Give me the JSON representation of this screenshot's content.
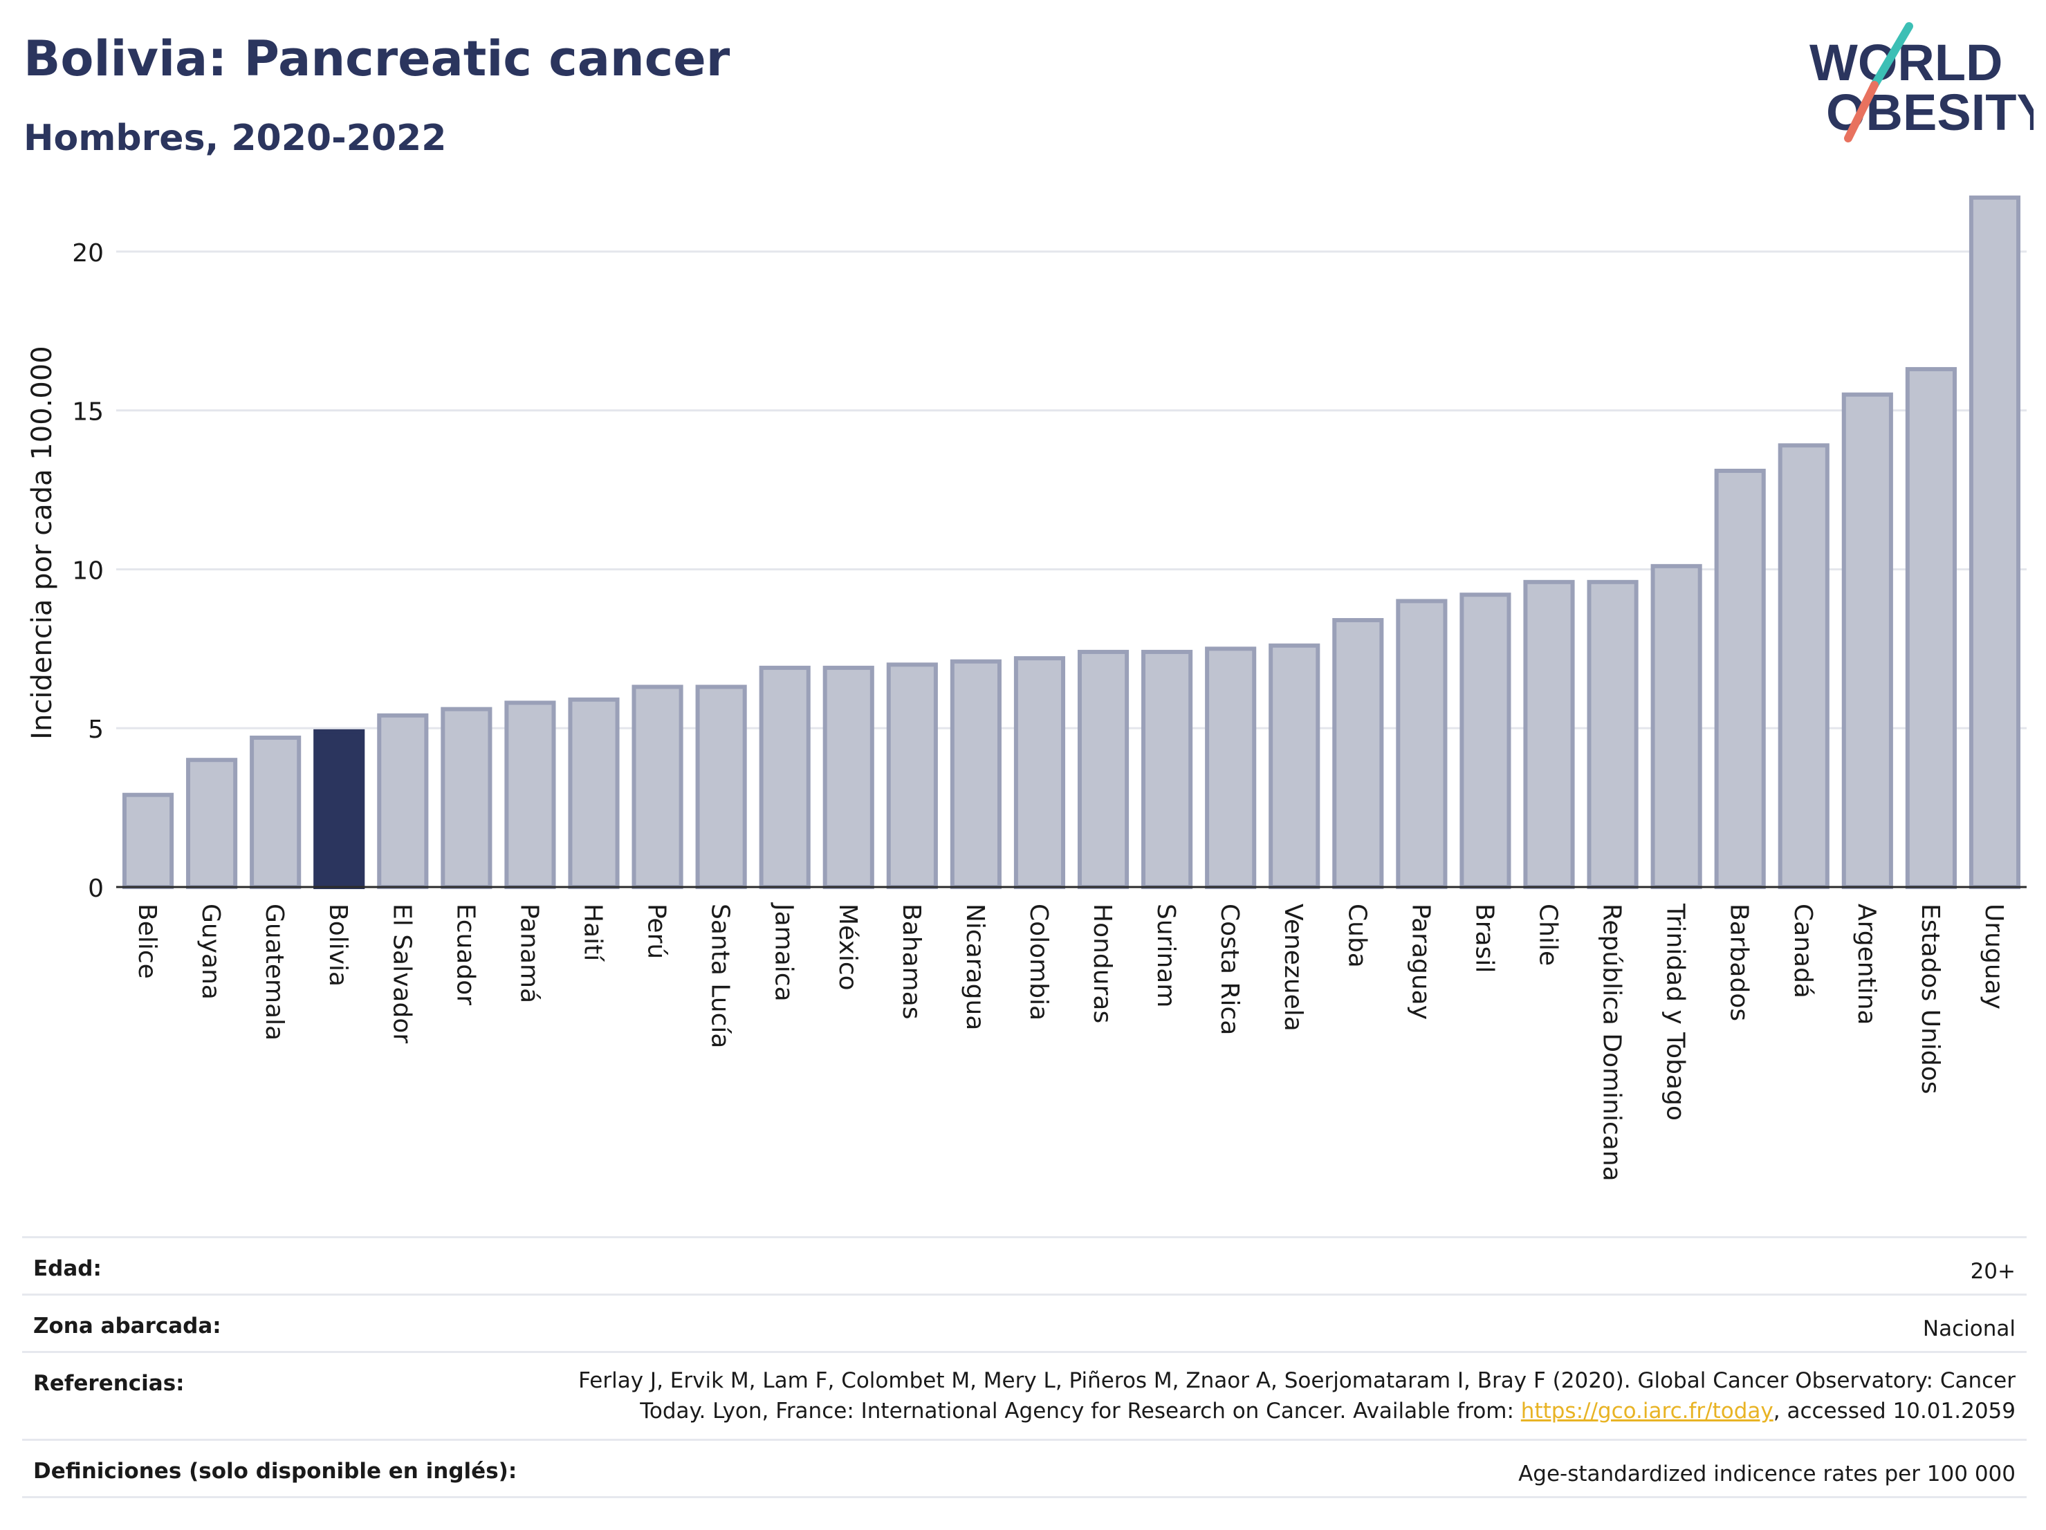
{
  "header": {
    "title": "Bolivia: Pancreatic cancer",
    "subtitle": "Hombres, 2020-2022",
    "logo_line1": "WORLD",
    "logo_line2": "OBESITY"
  },
  "colors": {
    "title": "#2b355e",
    "bar_fill": "#bfc3d0",
    "bar_stroke": "#9aa0b8",
    "highlight": "#2b355e",
    "logo_teal": "#3cbfb5",
    "logo_coral": "#e8725f",
    "link": "#e8b324"
  },
  "chart_data": {
    "type": "bar",
    "ylabel": "Incidencia por cada 100.000",
    "ylim": [
      0,
      22
    ],
    "yticks": [
      0,
      5,
      10,
      15,
      20
    ],
    "grid": true,
    "highlight": "Bolivia",
    "categories": [
      "Belice",
      "Guyana",
      "Guatemala",
      "Bolivia",
      "El Salvador",
      "Ecuador",
      "Panamá",
      "Haití",
      "Perú",
      "Santa Lucía",
      "Jamaica",
      "México",
      "Bahamas",
      "Nicaragua",
      "Colombia",
      "Honduras",
      "Surinam",
      "Costa Rica",
      "Venezuela",
      "Cuba",
      "Paraguay",
      "Brasil",
      "Chile",
      "República Dominicana",
      "Trinidad y Tobago",
      "Barbados",
      "Canadá",
      "Argentina",
      "Estados Unidos",
      "Uruguay"
    ],
    "values": [
      2.9,
      4.0,
      4.7,
      4.9,
      5.4,
      5.6,
      5.8,
      5.9,
      6.3,
      6.3,
      6.9,
      6.9,
      7.0,
      7.1,
      7.2,
      7.4,
      7.4,
      7.5,
      7.6,
      8.4,
      9.0,
      9.2,
      9.6,
      9.6,
      10.1,
      13.1,
      13.9,
      15.5,
      16.3,
      21.7
    ]
  },
  "info": {
    "age_label": "Edad:",
    "age_value": "20+",
    "zone_label": "Zona abarcada:",
    "zone_value": "Nacional",
    "refs_label": "Referencias:",
    "refs_line1": "Ferlay J, Ervik M, Lam F, Colombet M, Mery L, Piñeros M, Znaor A, Soerjomataram I, Bray F (2020). Global Cancer Observatory: Cancer",
    "refs_line2_pre": "Today. Lyon, France: International Agency for Research on Cancer. Available from: ",
    "refs_link": "https://gco.iarc.fr/today",
    "refs_line2_post": ", accessed 10.01.2059",
    "defs_label": "Definiciones (solo disponible en inglés):",
    "defs_value": "Age-standardized indicence rates per 100 000"
  }
}
